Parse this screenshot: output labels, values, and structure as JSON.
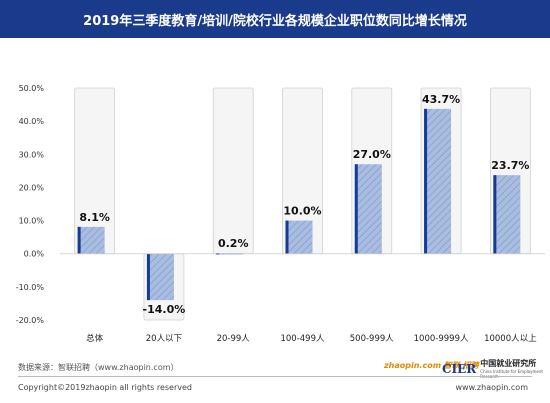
{
  "header": {
    "title": "2019年三季度教育/培训/院校行业各规模企业职位数同比增长情况"
  },
  "chart_data": {
    "type": "bar",
    "categories": [
      "总体",
      "20人以下",
      "20-99人",
      "100-499人",
      "500-999人",
      "1000-9999人",
      "10000人以上"
    ],
    "values": [
      8.1,
      -14.0,
      0.2,
      10.0,
      27.0,
      43.7,
      23.7
    ],
    "value_labels": [
      "8.1%",
      "-14.0%",
      "0.2%",
      "10.0%",
      "27.0%",
      "43.7%",
      "23.7%"
    ],
    "ylim": [
      -20,
      50
    ],
    "yticks": [
      50,
      40,
      30,
      20,
      10,
      0,
      -10,
      -20
    ],
    "ytick_labels": [
      "50.0%",
      "40.0%",
      "30.0%",
      "20.0%",
      "10.0%",
      "0.0%",
      "-10.0%",
      "-20.0%"
    ],
    "colors": {
      "bar_fill": "#a9bde0",
      "bar_edge": "#143c96",
      "hatch": "#7e95c4",
      "background_box": "#f5f5f5",
      "box_border": "#d0d0d0"
    }
  },
  "footer": {
    "source": "数据来源：智联招聘（www.zhaopin.com）",
    "copyright": "Copyright©2019zhaopin all rights reserved",
    "url": "www.zhaopin.com",
    "logo_zhaopin_cn": "智联",
    "logo_zhaopin_cn2": "招聘",
    "logo_zhaopin_domain": "zhaopin.com",
    "cier_mark": "CIER",
    "cier_cn": "中国就业研究所",
    "cier_en": "China Institute for Employment Research"
  }
}
